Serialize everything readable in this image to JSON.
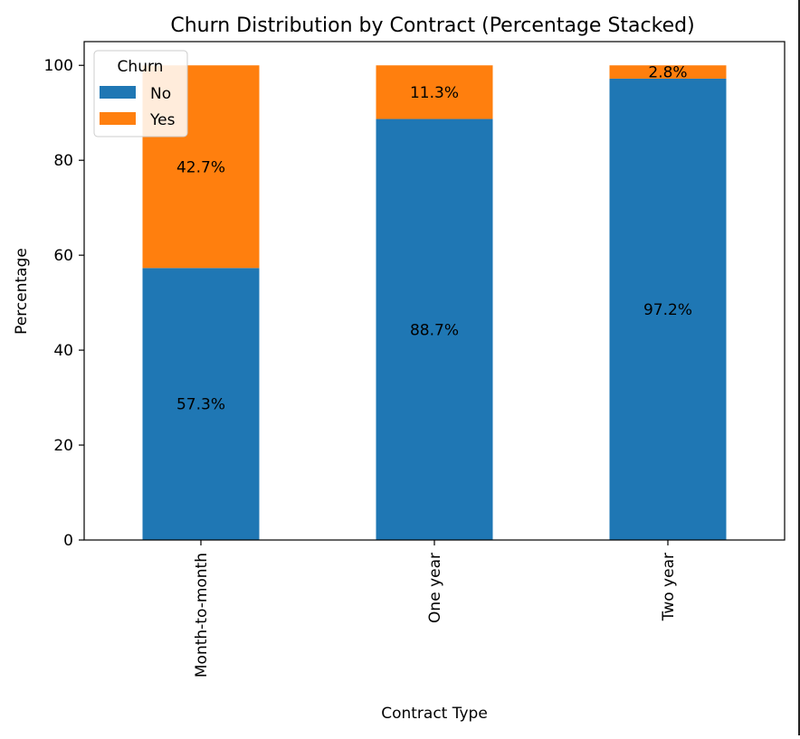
{
  "chart_data": {
    "type": "bar",
    "stacked": true,
    "title": "Churn Distribution by Contract (Percentage Stacked)",
    "xlabel": "Contract Type",
    "ylabel": "Percentage",
    "ylim": [
      0,
      105
    ],
    "yticks": [
      0,
      20,
      40,
      60,
      80,
      100
    ],
    "grid": false,
    "categories": [
      "Month-to-month",
      "One year",
      "Two year"
    ],
    "series": [
      {
        "name": "No",
        "color": "#1f77b4",
        "values": [
          57.3,
          88.7,
          97.2
        ],
        "labels": [
          "57.3%",
          "88.7%",
          "97.2%"
        ]
      },
      {
        "name": "Yes",
        "color": "#ff7f0e",
        "values": [
          42.7,
          11.3,
          2.8
        ],
        "labels": [
          "42.7%",
          "11.3%",
          "2.8%"
        ]
      }
    ],
    "legend": {
      "title": "Churn",
      "placement": "top-left"
    }
  }
}
